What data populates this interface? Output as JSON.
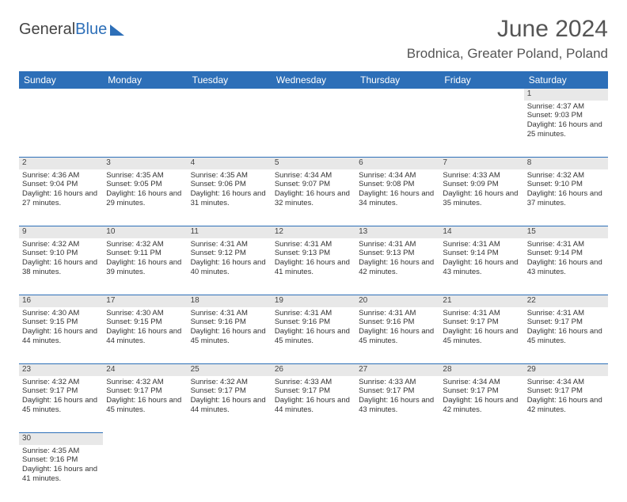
{
  "logo": {
    "text1": "General",
    "text2": "Blue"
  },
  "title": "June 2024",
  "location": "Brodnica, Greater Poland, Poland",
  "columns": [
    "Sunday",
    "Monday",
    "Tuesday",
    "Wednesday",
    "Thursday",
    "Friday",
    "Saturday"
  ],
  "header_bg": "#2d6fb8",
  "header_fg": "#ffffff",
  "daynum_bg": "#e8e8e8",
  "divider_color": "#2d6fb8",
  "weeks": [
    [
      null,
      null,
      null,
      null,
      null,
      null,
      {
        "n": "1",
        "sr": "4:37 AM",
        "ss": "9:03 PM",
        "dl": "16 hours and 25 minutes."
      }
    ],
    [
      {
        "n": "2",
        "sr": "4:36 AM",
        "ss": "9:04 PM",
        "dl": "16 hours and 27 minutes."
      },
      {
        "n": "3",
        "sr": "4:35 AM",
        "ss": "9:05 PM",
        "dl": "16 hours and 29 minutes."
      },
      {
        "n": "4",
        "sr": "4:35 AM",
        "ss": "9:06 PM",
        "dl": "16 hours and 31 minutes."
      },
      {
        "n": "5",
        "sr": "4:34 AM",
        "ss": "9:07 PM",
        "dl": "16 hours and 32 minutes."
      },
      {
        "n": "6",
        "sr": "4:34 AM",
        "ss": "9:08 PM",
        "dl": "16 hours and 34 minutes."
      },
      {
        "n": "7",
        "sr": "4:33 AM",
        "ss": "9:09 PM",
        "dl": "16 hours and 35 minutes."
      },
      {
        "n": "8",
        "sr": "4:32 AM",
        "ss": "9:10 PM",
        "dl": "16 hours and 37 minutes."
      }
    ],
    [
      {
        "n": "9",
        "sr": "4:32 AM",
        "ss": "9:10 PM",
        "dl": "16 hours and 38 minutes."
      },
      {
        "n": "10",
        "sr": "4:32 AM",
        "ss": "9:11 PM",
        "dl": "16 hours and 39 minutes."
      },
      {
        "n": "11",
        "sr": "4:31 AM",
        "ss": "9:12 PM",
        "dl": "16 hours and 40 minutes."
      },
      {
        "n": "12",
        "sr": "4:31 AM",
        "ss": "9:13 PM",
        "dl": "16 hours and 41 minutes."
      },
      {
        "n": "13",
        "sr": "4:31 AM",
        "ss": "9:13 PM",
        "dl": "16 hours and 42 minutes."
      },
      {
        "n": "14",
        "sr": "4:31 AM",
        "ss": "9:14 PM",
        "dl": "16 hours and 43 minutes."
      },
      {
        "n": "15",
        "sr": "4:31 AM",
        "ss": "9:14 PM",
        "dl": "16 hours and 43 minutes."
      }
    ],
    [
      {
        "n": "16",
        "sr": "4:30 AM",
        "ss": "9:15 PM",
        "dl": "16 hours and 44 minutes."
      },
      {
        "n": "17",
        "sr": "4:30 AM",
        "ss": "9:15 PM",
        "dl": "16 hours and 44 minutes."
      },
      {
        "n": "18",
        "sr": "4:31 AM",
        "ss": "9:16 PM",
        "dl": "16 hours and 45 minutes."
      },
      {
        "n": "19",
        "sr": "4:31 AM",
        "ss": "9:16 PM",
        "dl": "16 hours and 45 minutes."
      },
      {
        "n": "20",
        "sr": "4:31 AM",
        "ss": "9:16 PM",
        "dl": "16 hours and 45 minutes."
      },
      {
        "n": "21",
        "sr": "4:31 AM",
        "ss": "9:17 PM",
        "dl": "16 hours and 45 minutes."
      },
      {
        "n": "22",
        "sr": "4:31 AM",
        "ss": "9:17 PM",
        "dl": "16 hours and 45 minutes."
      }
    ],
    [
      {
        "n": "23",
        "sr": "4:32 AM",
        "ss": "9:17 PM",
        "dl": "16 hours and 45 minutes."
      },
      {
        "n": "24",
        "sr": "4:32 AM",
        "ss": "9:17 PM",
        "dl": "16 hours and 45 minutes."
      },
      {
        "n": "25",
        "sr": "4:32 AM",
        "ss": "9:17 PM",
        "dl": "16 hours and 44 minutes."
      },
      {
        "n": "26",
        "sr": "4:33 AM",
        "ss": "9:17 PM",
        "dl": "16 hours and 44 minutes."
      },
      {
        "n": "27",
        "sr": "4:33 AM",
        "ss": "9:17 PM",
        "dl": "16 hours and 43 minutes."
      },
      {
        "n": "28",
        "sr": "4:34 AM",
        "ss": "9:17 PM",
        "dl": "16 hours and 42 minutes."
      },
      {
        "n": "29",
        "sr": "4:34 AM",
        "ss": "9:17 PM",
        "dl": "16 hours and 42 minutes."
      }
    ],
    [
      {
        "n": "30",
        "sr": "4:35 AM",
        "ss": "9:16 PM",
        "dl": "16 hours and 41 minutes."
      },
      null,
      null,
      null,
      null,
      null,
      null
    ]
  ],
  "labels": {
    "sunrise": "Sunrise:",
    "sunset": "Sunset:",
    "daylight": "Daylight:"
  }
}
